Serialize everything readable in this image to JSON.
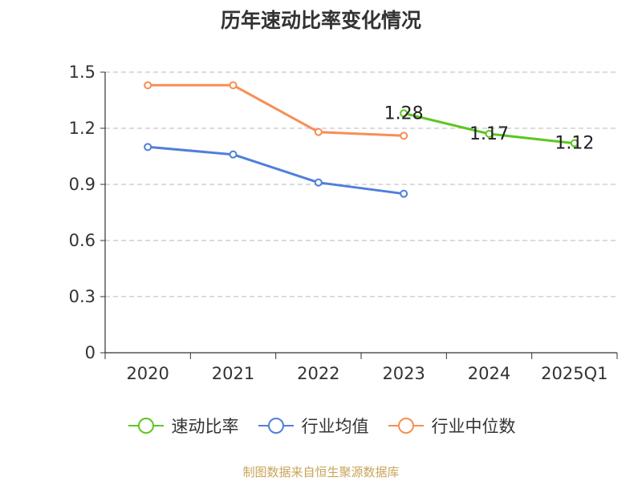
{
  "chart_data": {
    "type": "line",
    "title": "历年速动比率变化情况",
    "categories": [
      "2020",
      "2021",
      "2022",
      "2023",
      "2024",
      "2025Q1"
    ],
    "ylim": [
      0,
      1.5
    ],
    "yticks": [
      "0",
      "0.3",
      "0.6",
      "0.9",
      "1.2",
      "1.5"
    ],
    "ytick_values": [
      0,
      0.3,
      0.6,
      0.9,
      1.2,
      1.5
    ],
    "grid": true,
    "legend_position": "bottom",
    "series": [
      {
        "name": "速动比率",
        "color": "#5ec623",
        "values": [
          null,
          null,
          null,
          1.28,
          1.17,
          1.12
        ],
        "labels": [
          "",
          "",
          "",
          "1.28",
          "1.17",
          "1.12"
        ]
      },
      {
        "name": "行业均值",
        "color": "#4f7fd9",
        "values": [
          1.1,
          1.06,
          0.91,
          0.85,
          null,
          null
        ]
      },
      {
        "name": "行业中位数",
        "color": "#f78e55",
        "values": [
          1.43,
          1.43,
          1.18,
          1.16,
          null,
          null
        ]
      }
    ]
  },
  "source": "制图数据来自恒生聚源数据库"
}
